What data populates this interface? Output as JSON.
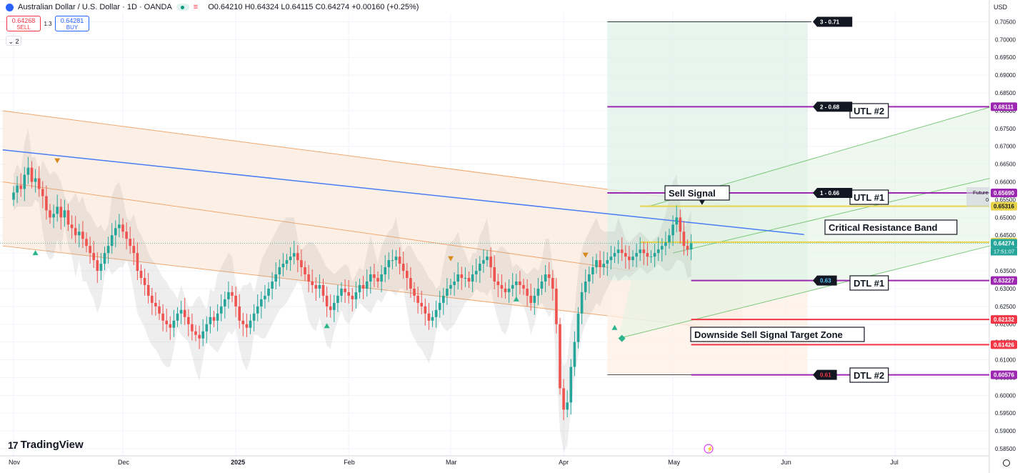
{
  "header": {
    "symbol_title": "Australian Dollar / U.S. Dollar · 1D · OANDA",
    "ohlc": "O0.64210 H0.64324 L0.64115 C0.64274 +0.00160 (+0.25%)",
    "sell_price": "0.64268",
    "sell_label": "SELL",
    "spread": "1.3",
    "buy_price": "0.64281",
    "buy_label": "BUY",
    "collapse_count": "2",
    "currency": "USD"
  },
  "brand": "TradingView",
  "colors": {
    "bull": "#26a69a",
    "bear": "#ef5350",
    "trendline": "#4a7cf6",
    "channel": "#f0a870",
    "ascending_channel": "#7cc87c",
    "purple_level": "#9c27b0",
    "red_level": "#f23645",
    "yellow_level": "#e8e04a"
  },
  "chart_data": {
    "type": "candlestick",
    "symbol": "AUD/USD",
    "timeframe": "1D",
    "ylim": [
      0.583,
      0.7075
    ],
    "y_ticks": [
      "0.70500",
      "0.70000",
      "0.69500",
      "0.69000",
      "0.68500",
      "0.68000",
      "0.67500",
      "0.67000",
      "0.66500",
      "0.66000",
      "0.65500",
      "0.65000",
      "0.64500",
      "0.64000",
      "0.63500",
      "0.63000",
      "0.62500",
      "0.62000",
      "0.61500",
      "0.61000",
      "0.60500",
      "0.60000",
      "0.59500",
      "0.59000",
      "0.58500"
    ],
    "x_ticks": [
      {
        "label": "Nov",
        "day": 0
      },
      {
        "label": "Dec",
        "day": 30
      },
      {
        "label": "2025",
        "day": 61
      },
      {
        "label": "Feb",
        "day": 92
      },
      {
        "label": "Mar",
        "day": 120
      },
      {
        "label": "Apr",
        "day": 151
      },
      {
        "label": "May",
        "day": 181
      },
      {
        "label": "Jun",
        "day": 212
      },
      {
        "label": "Jul",
        "day": 242
      }
    ],
    "closes": [
      0.657,
      0.659,
      0.658,
      0.662,
      0.664,
      0.66,
      0.661,
      0.658,
      0.656,
      0.652,
      0.65,
      0.651,
      0.653,
      0.65,
      0.652,
      0.648,
      0.647,
      0.645,
      0.646,
      0.644,
      0.642,
      0.64,
      0.638,
      0.635,
      0.637,
      0.64,
      0.642,
      0.645,
      0.647,
      0.648,
      0.646,
      0.644,
      0.642,
      0.64,
      0.635,
      0.633,
      0.631,
      0.628,
      0.626,
      0.625,
      0.623,
      0.621,
      0.62,
      0.619,
      0.621,
      0.623,
      0.624,
      0.622,
      0.62,
      0.618,
      0.617,
      0.616,
      0.618,
      0.62,
      0.622,
      0.621,
      0.623,
      0.625,
      0.627,
      0.629,
      0.628,
      0.625,
      0.621,
      0.62,
      0.619,
      0.621,
      0.623,
      0.625,
      0.627,
      0.628,
      0.63,
      0.632,
      0.634,
      0.636,
      0.637,
      0.638,
      0.639,
      0.64,
      0.638,
      0.636,
      0.634,
      0.632,
      0.631,
      0.63,
      0.631,
      0.628,
      0.625,
      0.624,
      0.626,
      0.628,
      0.63,
      0.629,
      0.628,
      0.627,
      0.629,
      0.631,
      0.63,
      0.632,
      0.634,
      0.633,
      0.632,
      0.634,
      0.636,
      0.638,
      0.638,
      0.639,
      0.637,
      0.635,
      0.633,
      0.63,
      0.628,
      0.626,
      0.625,
      0.623,
      0.621,
      0.622,
      0.624,
      0.626,
      0.628,
      0.63,
      0.631,
      0.632,
      0.634,
      0.633,
      0.633,
      0.632,
      0.634,
      0.635,
      0.637,
      0.638,
      0.639,
      0.636,
      0.632,
      0.631,
      0.63,
      0.629,
      0.63,
      0.631,
      0.632,
      0.631,
      0.63,
      0.628,
      0.626,
      0.628,
      0.63,
      0.632,
      0.634,
      0.633,
      0.63,
      0.62,
      0.602,
      0.596,
      0.598,
      0.608,
      0.615,
      0.623,
      0.629,
      0.632,
      0.634,
      0.636,
      0.638,
      0.636,
      0.637,
      0.638,
      0.639,
      0.64,
      0.641,
      0.64,
      0.639,
      0.638,
      0.639,
      0.64,
      0.641,
      0.64,
      0.639,
      0.639,
      0.64,
      0.641,
      0.642,
      0.643,
      0.645,
      0.648,
      0.65,
      0.646,
      0.642,
      0.641,
      0.6427
    ],
    "annotations": [
      {
        "text": "Sell Signal"
      },
      {
        "text": "Critical Resistance Band"
      },
      {
        "text": "UTL #2"
      },
      {
        "text": "UTL #1"
      },
      {
        "text": "DTL #1"
      },
      {
        "text": "DTL #2"
      },
      {
        "text": "Downside Sell Signal Target Zone"
      }
    ],
    "fib_tags": [
      {
        "text": "3 - 0.71",
        "value": 0.705
      },
      {
        "text": "2 - 0.68",
        "value": 0.68111
      },
      {
        "text": "1 - 0.66",
        "value": 0.6569
      },
      {
        "text": "0.63",
        "value": 0.63227
      },
      {
        "text": "0.61",
        "value": 0.60576
      }
    ],
    "levels": [
      {
        "label": "0.68111",
        "value": 0.68111,
        "color": "#9c27b0"
      },
      {
        "label": "0.65690",
        "value": 0.6569,
        "color": "#9c27b0"
      },
      {
        "label": "0.65316",
        "value": 0.65316,
        "color": "#e8d44a"
      },
      {
        "label": "0.64307",
        "value": 0.64307,
        "color": "#e8d44a"
      },
      {
        "label": "0.64274",
        "value": 0.64274,
        "color": "#26a69a"
      },
      {
        "label": "0.63227",
        "value": 0.63227,
        "color": "#9c27b0"
      },
      {
        "label": "0.62132",
        "value": 0.62132,
        "color": "#f23645"
      },
      {
        "label": "0.61426",
        "value": 0.61426,
        "color": "#f23645"
      },
      {
        "label": "0.60576",
        "value": 0.60576,
        "color": "#9c27b0"
      }
    ],
    "countdown": "17:51:07",
    "future_label": "Future",
    "future_sub": "0"
  }
}
